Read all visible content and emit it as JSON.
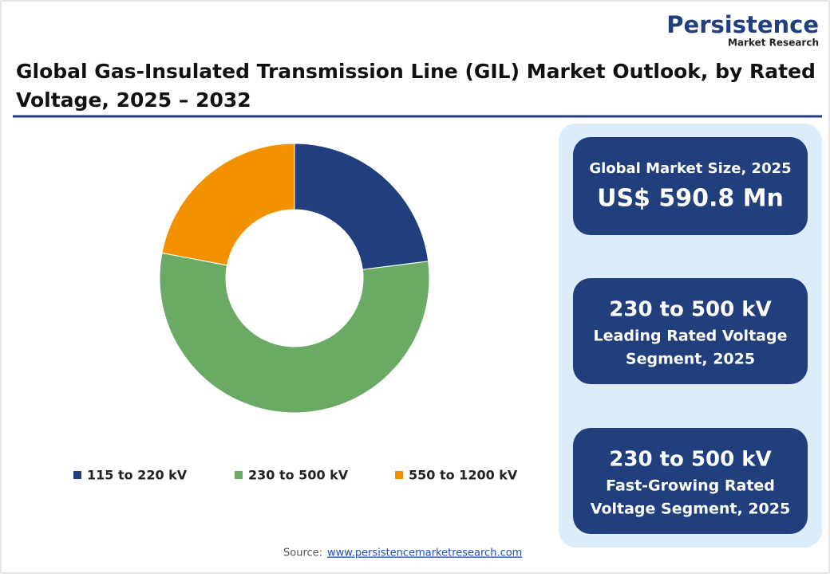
{
  "logo": {
    "name": "Persistence",
    "tagline": "Market Research"
  },
  "chart_data": {
    "type": "donut",
    "title_lines": [
      "Global Gas-Insulated Transmission Line (GIL) Market Outlook, by Rated",
      "Voltage, 2025 – 2032"
    ],
    "categories": [
      "115 to 220 kV",
      "230 to 500 kV",
      "550 to 1200 kV"
    ],
    "values": [
      23,
      55,
      22
    ],
    "colors": [
      "#213f7d",
      "#6aaa64",
      "#f39200"
    ]
  },
  "cards": [
    {
      "lines": [
        "Global Market Size, 2025",
        "US$ 590.8 Mn"
      ]
    },
    {
      "lines": [
        "230 to 500 kV",
        "Leading Rated Voltage",
        "Segment, 2025"
      ]
    },
    {
      "lines": [
        "230 to 500 kV",
        "Fast-Growing Rated",
        "Voltage Segment, 2025"
      ]
    }
  ],
  "source": {
    "label": "Source:",
    "url": "www.persistencemarketresearch.com"
  }
}
